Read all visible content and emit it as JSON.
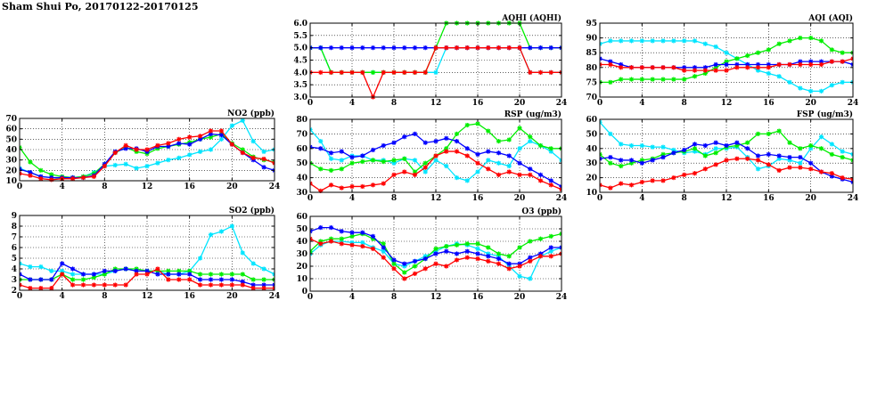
{
  "page": {
    "title": "Sham Shui Po, 20170122-20170125"
  },
  "series_colors": [
    "#00e5ff",
    "#00ee00",
    "#0000ff",
    "#ff0000"
  ],
  "chart_data": [
    {
      "id": "aqhi",
      "type": "line",
      "title": "AQHI (AQHI)",
      "xlim": [
        0,
        24
      ],
      "ylim": [
        3.0,
        6.0
      ],
      "grid": true,
      "x_ticks": [
        0,
        4,
        8,
        12,
        16,
        20,
        24
      ],
      "y_ticks": [
        3.0,
        3.5,
        4.0,
        4.5,
        5.0,
        5.5,
        6.0
      ],
      "y_tick_labels": [
        "3.0",
        "3.5",
        "4.0",
        "4.5",
        "5.0",
        "5.5",
        "6.0"
      ],
      "series": [
        {
          "values": [
            5,
            5,
            4,
            4,
            4,
            4,
            4,
            4,
            4,
            4,
            4,
            4,
            4,
            5,
            5,
            5,
            5,
            5,
            5,
            5,
            5,
            4,
            4,
            4,
            4
          ]
        },
        {
          "values": [
            5,
            5,
            4,
            4,
            4,
            4,
            4,
            4,
            4,
            4,
            4,
            4,
            5,
            6,
            6,
            6,
            6,
            6,
            6,
            6,
            6,
            5,
            5,
            5,
            5
          ]
        },
        {
          "values": [
            5,
            5,
            5,
            5,
            5,
            5,
            5,
            5,
            5,
            5,
            5,
            5,
            5,
            5,
            5,
            5,
            5,
            5,
            5,
            5,
            5,
            5,
            5,
            5,
            5
          ]
        },
        {
          "values": [
            4,
            4,
            4,
            4,
            4,
            4,
            3,
            4,
            4,
            4,
            4,
            4,
            5,
            5,
            5,
            5,
            5,
            5,
            5,
            5,
            5,
            4,
            4,
            4,
            4
          ]
        }
      ]
    },
    {
      "id": "aqi",
      "type": "line",
      "title": "AQI (AQI)",
      "xlim": [
        0,
        24
      ],
      "ylim": [
        70,
        95
      ],
      "grid": true,
      "x_ticks": [
        0,
        4,
        8,
        12,
        16,
        20,
        24
      ],
      "y_ticks": [
        70,
        75,
        80,
        85,
        90,
        95
      ],
      "series": [
        {
          "values": [
            88,
            89,
            89,
            89,
            89,
            89,
            89,
            89,
            89,
            89,
            88,
            87,
            85,
            83,
            81,
            79,
            78,
            77,
            75,
            73,
            72,
            72,
            74,
            75,
            75
          ]
        },
        {
          "values": [
            75,
            75,
            76,
            76,
            76,
            76,
            76,
            76,
            76,
            77,
            78,
            80,
            82,
            83,
            84,
            85,
            86,
            88,
            89,
            90,
            90,
            89,
            86,
            85,
            85
          ]
        },
        {
          "values": [
            83,
            82,
            81,
            80,
            80,
            80,
            80,
            80,
            80,
            80,
            80,
            81,
            81,
            81,
            81,
            81,
            81,
            81,
            81,
            82,
            82,
            82,
            82,
            82,
            81
          ]
        },
        {
          "values": [
            81,
            81,
            80,
            80,
            80,
            80,
            80,
            80,
            79,
            79,
            79,
            79,
            79,
            80,
            80,
            80,
            80,
            81,
            81,
            81,
            81,
            81,
            82,
            82,
            83
          ]
        }
      ]
    },
    {
      "id": "no2",
      "type": "line",
      "title": "NO2 (ppb)",
      "xlim": [
        0,
        24
      ],
      "ylim": [
        10,
        70
      ],
      "grid": true,
      "x_ticks": [
        0,
        4,
        8,
        12,
        16,
        20,
        24
      ],
      "y_ticks": [
        10,
        20,
        30,
        40,
        50,
        60,
        70
      ],
      "series": [
        {
          "values": [
            22,
            18,
            14,
            13,
            12,
            13,
            14,
            18,
            24,
            25,
            26,
            22,
            24,
            27,
            30,
            32,
            35,
            38,
            40,
            50,
            63,
            68,
            48,
            38,
            40
          ]
        },
        {
          "values": [
            42,
            28,
            20,
            16,
            14,
            13,
            14,
            17,
            26,
            37,
            42,
            38,
            36,
            41,
            43,
            45,
            47,
            50,
            52,
            55,
            46,
            40,
            33,
            30,
            28
          ]
        },
        {
          "values": [
            21,
            18,
            14,
            13,
            13,
            13,
            13,
            15,
            26,
            38,
            41,
            41,
            38,
            43,
            43,
            46,
            45,
            50,
            55,
            54,
            45,
            37,
            30,
            23,
            20
          ]
        },
        {
          "values": [
            17,
            15,
            12,
            11,
            12,
            12,
            13,
            14,
            24,
            37,
            44,
            40,
            40,
            44,
            46,
            50,
            52,
            53,
            58,
            58,
            45,
            37,
            32,
            31,
            27
          ]
        }
      ]
    },
    {
      "id": "rsp",
      "type": "line",
      "title": "RSP (ug/m3)",
      "xlim": [
        0,
        24
      ],
      "ylim": [
        30,
        80
      ],
      "grid": true,
      "x_ticks": [
        0,
        4,
        8,
        12,
        16,
        20,
        24
      ],
      "y_ticks": [
        30,
        40,
        50,
        60,
        70,
        80
      ],
      "series": [
        {
          "values": [
            73,
            65,
            53,
            52,
            55,
            55,
            52,
            52,
            50,
            53,
            52,
            44,
            52,
            48,
            40,
            38,
            44,
            52,
            50,
            48,
            60,
            65,
            62,
            58,
            52
          ]
        },
        {
          "values": [
            50,
            46,
            45,
            46,
            50,
            51,
            52,
            51,
            52,
            53,
            44,
            50,
            55,
            60,
            70,
            76,
            77,
            72,
            65,
            66,
            74,
            68,
            62,
            60,
            60
          ]
        },
        {
          "values": [
            61,
            60,
            57,
            58,
            54,
            55,
            59,
            62,
            64,
            68,
            70,
            64,
            65,
            67,
            65,
            60,
            56,
            58,
            57,
            55,
            50,
            46,
            42,
            38,
            34
          ]
        },
        {
          "values": [
            36,
            31,
            35,
            33,
            34,
            34,
            35,
            36,
            42,
            44,
            42,
            47,
            55,
            58,
            58,
            55,
            50,
            46,
            42,
            44,
            42,
            42,
            38,
            35,
            32
          ]
        }
      ]
    },
    {
      "id": "fsp",
      "type": "line",
      "title": "FSP (ug/m3)",
      "xlim": [
        0,
        24
      ],
      "ylim": [
        10,
        60
      ],
      "grid": true,
      "x_ticks": [
        0,
        4,
        8,
        12,
        16,
        20,
        24
      ],
      "y_ticks": [
        10,
        20,
        30,
        40,
        50,
        60
      ],
      "series": [
        {
          "values": [
            58,
            50,
            43,
            42,
            42,
            41,
            41,
            39,
            37,
            38,
            36,
            40,
            40,
            41,
            34,
            26,
            28,
            33,
            32,
            30,
            40,
            48,
            43,
            38,
            36
          ]
        },
        {
          "values": [
            36,
            30,
            28,
            30,
            32,
            33,
            36,
            37,
            38,
            40,
            35,
            37,
            41,
            42,
            44,
            50,
            50,
            52,
            44,
            40,
            42,
            40,
            36,
            34,
            32
          ]
        },
        {
          "values": [
            33,
            34,
            32,
            32,
            30,
            32,
            34,
            37,
            39,
            43,
            42,
            44,
            42,
            44,
            40,
            35,
            36,
            35,
            34,
            34,
            30,
            24,
            21,
            19,
            17
          ]
        },
        {
          "values": [
            15,
            13,
            16,
            15,
            17,
            18,
            18,
            20,
            22,
            23,
            26,
            29,
            32,
            33,
            33,
            32,
            29,
            25,
            27,
            27,
            26,
            24,
            23,
            20,
            19
          ]
        }
      ]
    },
    {
      "id": "so2",
      "type": "line",
      "title": "SO2 (ppb)",
      "xlim": [
        0,
        24
      ],
      "ylim": [
        2,
        9
      ],
      "grid": true,
      "x_ticks": [
        0,
        4,
        8,
        12,
        16,
        20,
        24
      ],
      "y_ticks": [
        2,
        3,
        4,
        5,
        6,
        7,
        8,
        9
      ],
      "series": [
        {
          "values": [
            4.5,
            4.2,
            4.2,
            3.8,
            3.8,
            3.5,
            3.5,
            3.5,
            3.5,
            3.8,
            4.0,
            3.8,
            3.8,
            3.8,
            3.5,
            3.5,
            3.8,
            5.0,
            7.2,
            7.5,
            8.0,
            5.5,
            4.5,
            4.0,
            3.5
          ]
        },
        {
          "values": [
            3.0,
            3.0,
            3.0,
            3.0,
            3.5,
            3.0,
            3.0,
            3.2,
            3.5,
            4.0,
            4.0,
            4.0,
            3.8,
            3.8,
            3.8,
            3.8,
            3.8,
            3.5,
            3.5,
            3.5,
            3.5,
            3.5,
            3.0,
            3.0,
            3.0
          ]
        },
        {
          "values": [
            3.5,
            3.0,
            3.0,
            3.0,
            4.5,
            4.0,
            3.5,
            3.5,
            3.8,
            3.8,
            4.0,
            3.8,
            3.8,
            3.5,
            3.5,
            3.5,
            3.5,
            3.0,
            3.0,
            3.0,
            3.0,
            2.8,
            2.5,
            2.5,
            2.5
          ]
        },
        {
          "values": [
            2.5,
            2.2,
            2.2,
            2.2,
            3.5,
            2.5,
            2.5,
            2.5,
            2.5,
            2.5,
            2.5,
            3.5,
            3.5,
            4.0,
            3.0,
            3.0,
            3.0,
            2.5,
            2.5,
            2.5,
            2.5,
            2.5,
            2.2,
            2.2,
            2.2
          ]
        }
      ]
    },
    {
      "id": "o3",
      "type": "line",
      "title": "O3 (ppb)",
      "xlim": [
        0,
        24
      ],
      "ylim": [
        0,
        60
      ],
      "grid": true,
      "x_ticks": [
        0,
        4,
        8,
        12,
        16,
        20,
        24
      ],
      "y_ticks": [
        0,
        10,
        20,
        30,
        40,
        50,
        60
      ],
      "series": [
        {
          "values": [
            30,
            37,
            40,
            40,
            39,
            39,
            35,
            32,
            22,
            20,
            24,
            28,
            32,
            36,
            38,
            37,
            34,
            30,
            28,
            20,
            12,
            10,
            28,
            32,
            35
          ]
        },
        {
          "values": [
            32,
            40,
            42,
            42,
            44,
            46,
            42,
            38,
            22,
            15,
            20,
            26,
            34,
            36,
            37,
            38,
            38,
            35,
            30,
            28,
            35,
            40,
            42,
            44,
            46
          ]
        },
        {
          "values": [
            48,
            51,
            51,
            48,
            47,
            47,
            44,
            35,
            25,
            22,
            24,
            26,
            30,
            32,
            30,
            32,
            30,
            28,
            26,
            22,
            22,
            27,
            30,
            35,
            35
          ]
        },
        {
          "values": [
            42,
            38,
            40,
            38,
            37,
            36,
            34,
            27,
            18,
            10,
            14,
            18,
            22,
            20,
            25,
            27,
            26,
            24,
            22,
            18,
            20,
            24,
            28,
            28,
            30
          ]
        }
      ]
    }
  ]
}
